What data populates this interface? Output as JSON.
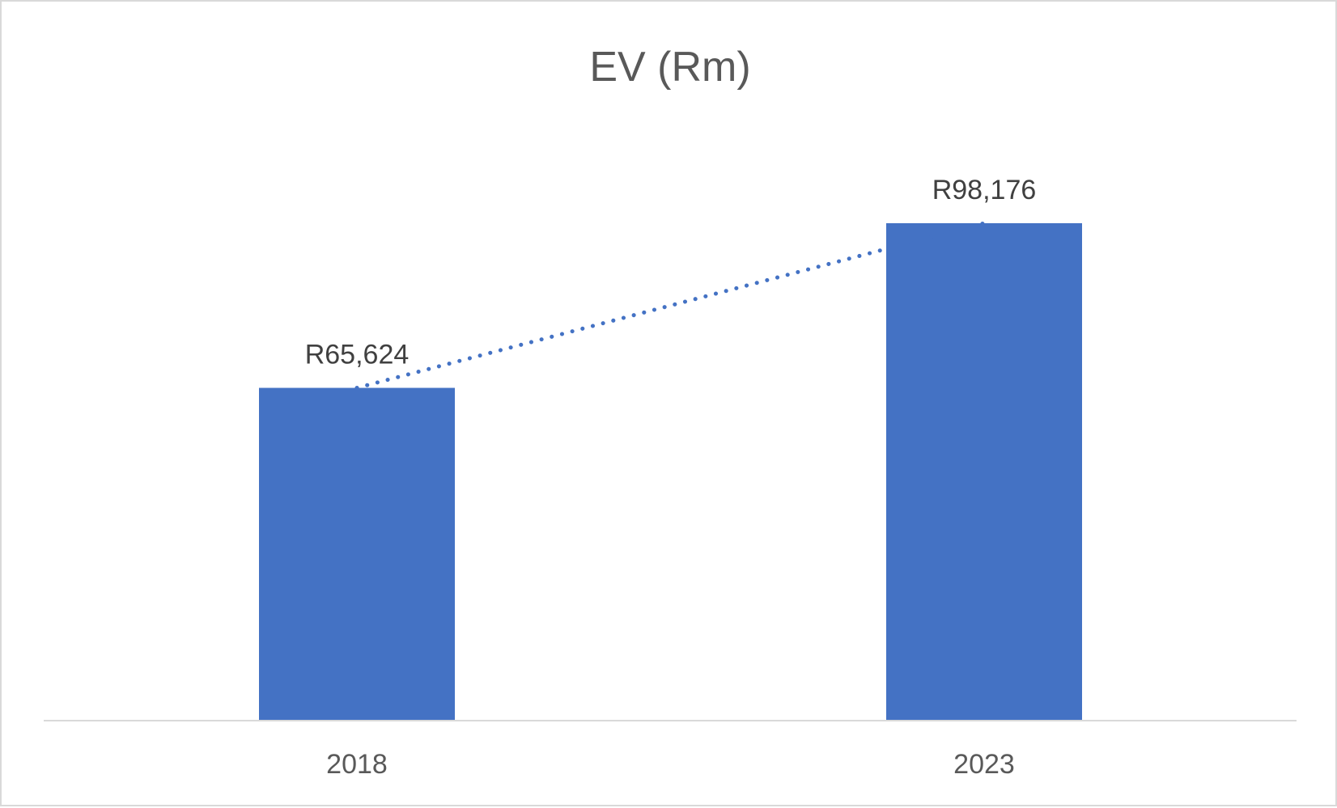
{
  "chart_data": {
    "type": "bar",
    "title": "EV (Rm)",
    "xlabel": "",
    "ylabel": "",
    "categories": [
      "2018",
      "2023"
    ],
    "values": [
      65624,
      98176
    ],
    "data_labels": [
      "R65,624",
      "R98,176"
    ],
    "ylim": [
      0,
      110000
    ],
    "grid": false,
    "legend": "none",
    "trendline": "linear dotted",
    "colors": {
      "bar": "#4472c4",
      "trendline": "#4472c4",
      "axis": "#d9d9d9",
      "title": "#595959",
      "data_label": "#404040",
      "tick_label": "#595959"
    }
  }
}
